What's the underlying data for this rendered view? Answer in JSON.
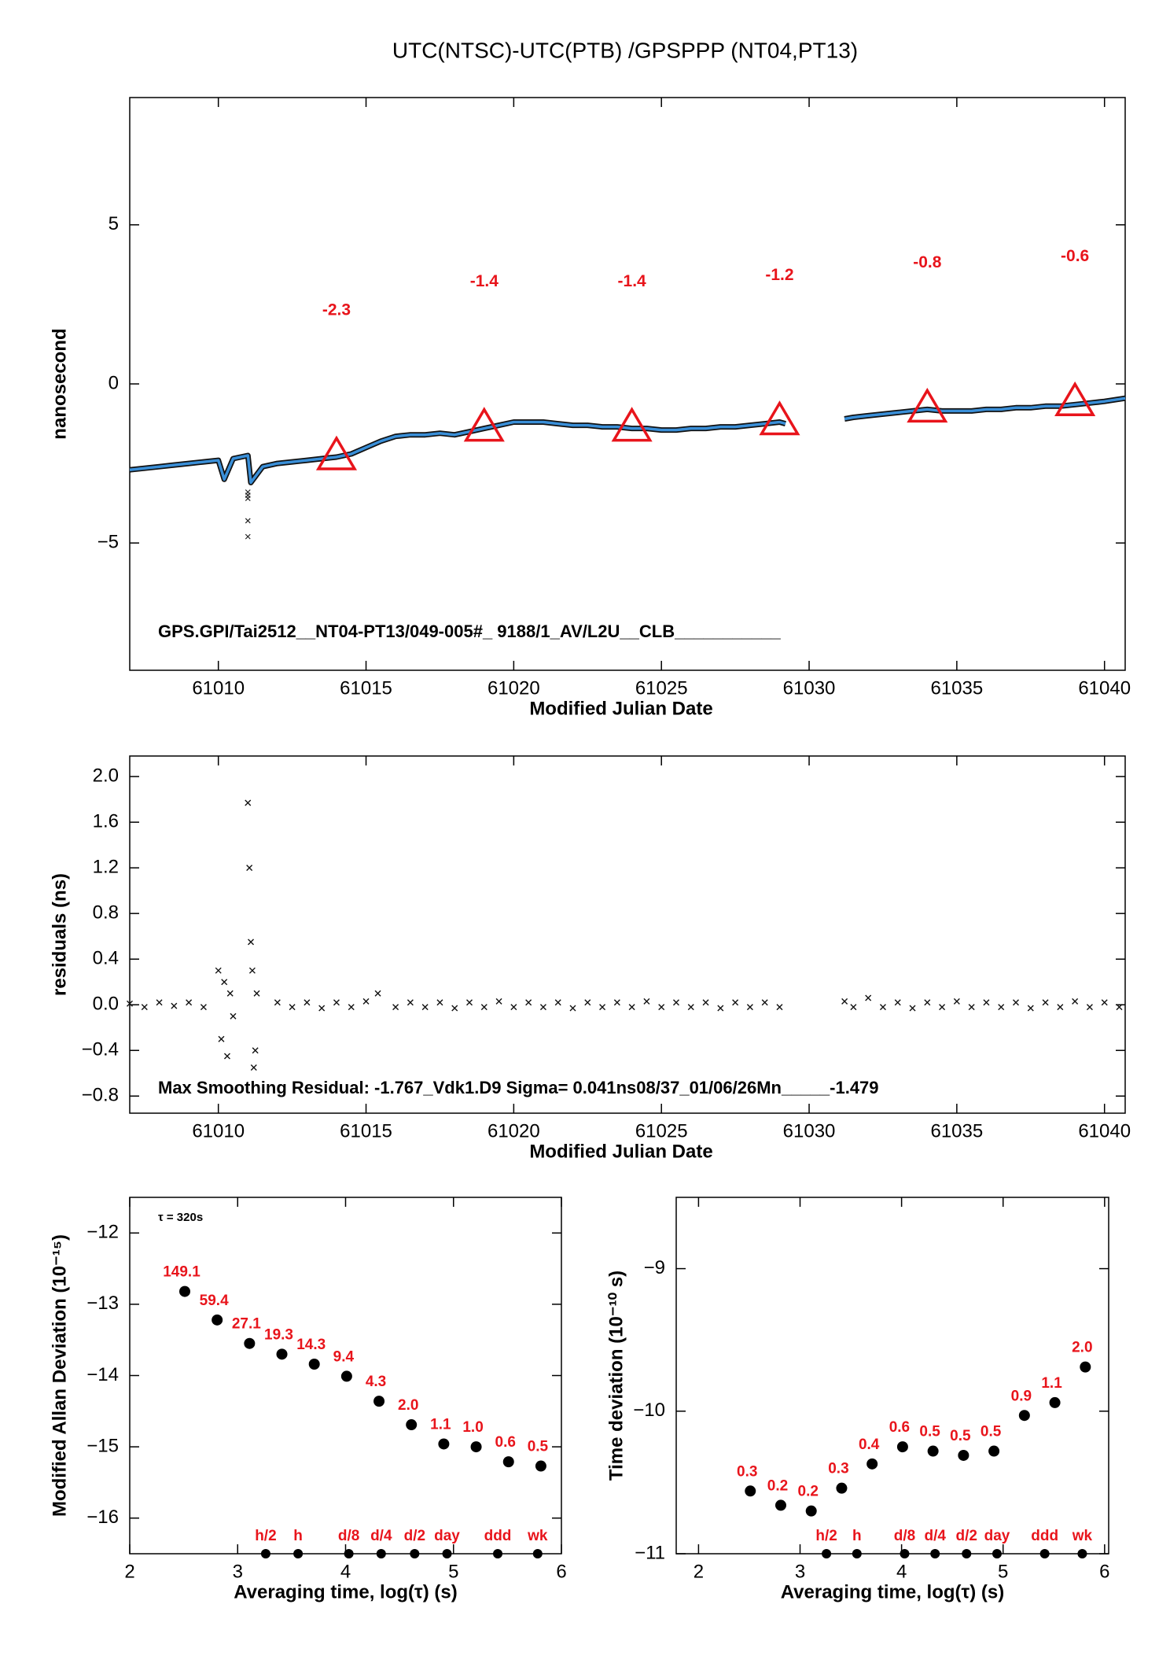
{
  "chart_data": [
    {
      "type": "line",
      "title": "UTC(NTSC)-UTC(PTB)  /GPSPPP  (NT04,PT13)",
      "xlabel": "Modified Julian Date",
      "ylabel": "nanosecond",
      "xlim": [
        61007,
        61040.7
      ],
      "ylim": [
        -9,
        9
      ],
      "xticks": [
        61010,
        61015,
        61020,
        61025,
        61030,
        61035,
        61040
      ],
      "yticks": [
        {
          "value": -5,
          "label": "−5"
        },
        0,
        5
      ],
      "color": "#3a8fd8",
      "x": [
        61007,
        61007.5,
        61008,
        61008.5,
        61009,
        61009.5,
        61010,
        61010.2,
        61010.5,
        61011,
        61011.1,
        61011.5,
        61012,
        61012.5,
        61013,
        61013.5,
        61014,
        61014.5,
        61015,
        61015.5,
        61016,
        61016.5,
        61017,
        61017.5,
        61018,
        61018.5,
        61019,
        61019.5,
        61020,
        61020.5,
        61021,
        61021.5,
        61022,
        61022.5,
        61023,
        61023.5,
        61024,
        61024.5,
        61025,
        61025.5,
        61026,
        61026.5,
        61027,
        61027.5,
        61028,
        61028.5,
        61029,
        61029.2,
        61030,
        61031.2,
        61031.5,
        61032,
        61032.5,
        61033,
        61033.5,
        61034,
        61034.5,
        61035,
        61035.5,
        61036,
        61036.5,
        61037,
        61037.5,
        61038,
        61038.5,
        61039,
        61039.5,
        61040,
        61040.7
      ],
      "values": [
        -2.7,
        -2.65,
        -2.6,
        -2.55,
        -2.5,
        -2.45,
        -2.4,
        -3.0,
        -2.35,
        -2.25,
        -3.1,
        -2.6,
        -2.5,
        -2.45,
        -2.4,
        -2.35,
        -2.3,
        -2.2,
        -2.0,
        -1.8,
        -1.65,
        -1.6,
        -1.6,
        -1.55,
        -1.6,
        -1.5,
        -1.4,
        -1.3,
        -1.2,
        -1.2,
        -1.2,
        -1.25,
        -1.3,
        -1.3,
        -1.35,
        -1.35,
        -1.4,
        -1.4,
        -1.45,
        -1.45,
        -1.4,
        -1.4,
        -1.35,
        -1.35,
        -1.3,
        -1.25,
        -1.2,
        -1.25,
        null,
        -1.1,
        -1.05,
        -1.0,
        -0.95,
        -0.9,
        -0.85,
        -0.8,
        -0.85,
        -0.85,
        -0.85,
        -0.8,
        -0.8,
        -0.75,
        -0.75,
        -0.7,
        -0.7,
        -0.65,
        -0.6,
        -0.55,
        -0.45
      ],
      "markers": {
        "color": "#e8141b",
        "x": [
          61014,
          61019,
          61024,
          61029,
          61034,
          61039
        ],
        "values": [
          -2.3,
          -1.4,
          -1.4,
          -1.2,
          -0.8,
          -0.6
        ],
        "value_labels": [
          "-2.3",
          "-1.4",
          "-1.4",
          "-1.2",
          "-0.8",
          "-0.6"
        ]
      },
      "outliers": {
        "x": [
          61011,
          61011,
          61011,
          61011,
          61011
        ],
        "values": [
          -3.4,
          -3.5,
          -3.6,
          -4.3,
          -4.8
        ]
      },
      "note": "GPS.GPI/Tai2512__NT04-PT13/049-005#_  9188/1_AV/L2U__CLB___________"
    },
    {
      "type": "scatter",
      "xlabel": "Modified Julian Date",
      "ylabel": "residuals (ns)",
      "xlim": [
        61007,
        61040.7
      ],
      "ylim": [
        -0.95,
        2.18
      ],
      "xticks": [
        61010,
        61015,
        61020,
        61025,
        61030,
        61035,
        61040
      ],
      "yticks": [
        {
          "value": -0.8,
          "label": "−0.8"
        },
        {
          "value": -0.4,
          "label": "−0.4"
        },
        {
          "value": 0,
          "label": "0.0"
        },
        0.4,
        0.8,
        1.2,
        1.6,
        {
          "value": 2,
          "label": "2.0"
        }
      ],
      "x": [
        61007,
        61007.5,
        61008,
        61008.5,
        61009,
        61009.5,
        61010,
        61010.1,
        61010.2,
        61010.3,
        61010.4,
        61010.5,
        61011,
        61011.05,
        61011.1,
        61011.15,
        61011.2,
        61011.25,
        61011.3,
        61012,
        61012.5,
        61013,
        61013.5,
        61014,
        61014.5,
        61015,
        61015.4,
        61016,
        61016.5,
        61017,
        61017.5,
        61018,
        61018.5,
        61019,
        61019.5,
        61020,
        61020.5,
        61021,
        61021.5,
        61022,
        61022.5,
        61023,
        61023.5,
        61024,
        61024.5,
        61025,
        61025.5,
        61026,
        61026.5,
        61027,
        61027.5,
        61028,
        61028.5,
        61029,
        61031.2,
        61031.5,
        61032,
        61032.5,
        61033,
        61033.5,
        61034,
        61034.5,
        61035,
        61035.5,
        61036,
        61036.5,
        61037,
        61037.5,
        61038,
        61038.5,
        61039,
        61039.5,
        61040,
        61040.5
      ],
      "values": [
        0.01,
        -0.02,
        0.02,
        -0.01,
        0.02,
        -0.02,
        0.3,
        -0.3,
        0.2,
        -0.45,
        0.1,
        -0.1,
        1.77,
        1.2,
        0.55,
        0.3,
        -0.55,
        -0.4,
        0.1,
        0.02,
        -0.02,
        0.02,
        -0.03,
        0.02,
        -0.02,
        0.03,
        0.1,
        -0.02,
        0.02,
        -0.02,
        0.02,
        -0.03,
        0.02,
        -0.02,
        0.03,
        -0.02,
        0.02,
        -0.02,
        0.02,
        -0.03,
        0.02,
        -0.02,
        0.02,
        -0.02,
        0.03,
        -0.02,
        0.02,
        -0.02,
        0.02,
        -0.03,
        0.02,
        -0.02,
        0.02,
        -0.02,
        0.03,
        -0.02,
        0.06,
        -0.02,
        0.02,
        -0.03,
        0.02,
        -0.02,
        0.03,
        -0.02,
        0.02,
        -0.02,
        0.02,
        -0.03,
        0.02,
        -0.02,
        0.03,
        -0.02,
        0.02,
        -0.02
      ],
      "note": "Max Smoothing Residual: -1.767_Vdk1.D9  Sigma= 0.041ns08/37_01/06/26Mn_____-1.479"
    },
    {
      "type": "scatter",
      "xlabel": "Averaging time, log(τ) (s)",
      "ylabel": "Modified Allan Deviation (10⁻¹⁵)",
      "xlim": [
        2,
        6
      ],
      "ylim": [
        -16.5,
        -11.5
      ],
      "xticks": [
        2,
        3,
        4,
        5,
        6
      ],
      "yticks": [
        {
          "value": -16,
          "label": "−16"
        },
        {
          "value": -15,
          "label": "−15"
        },
        {
          "value": -14,
          "label": "−14"
        },
        {
          "value": -13,
          "label": "−13"
        },
        {
          "value": -12,
          "label": "−12"
        }
      ],
      "annotation": "τ = 320s",
      "x": [
        2.51,
        2.81,
        3.11,
        3.41,
        3.71,
        4.01,
        4.31,
        4.61,
        4.91,
        5.21,
        5.51,
        5.81
      ],
      "values": [
        -12.82,
        -13.22,
        -13.55,
        -13.7,
        -13.84,
        -14.01,
        -14.36,
        -14.69,
        -14.96,
        -15.0,
        -15.21,
        -15.27
      ],
      "point_labels": [
        "149.1",
        "59.4",
        "27.1",
        "19.3",
        "14.3",
        "9.4",
        "4.3",
        "2.0",
        "1.1",
        "1.0",
        "0.6",
        "0.5"
      ],
      "periods": {
        "labels": [
          "h/2",
          "h",
          "d/8",
          "d/4",
          "d/2",
          "day",
          "ddd",
          "wk"
        ],
        "x": [
          3.26,
          3.56,
          4.03,
          4.33,
          4.64,
          4.94,
          5.41,
          5.78
        ]
      }
    },
    {
      "type": "scatter",
      "xlabel": "Averaging time, log(τ) (s)",
      "ylabel": "Time deviation (10⁻¹⁰ s)",
      "xlim": [
        1.78,
        6.04
      ],
      "ylim": [
        -11,
        -8.5
      ],
      "xticks": [
        2,
        3,
        4,
        5,
        6
      ],
      "yticks": [
        {
          "value": -11,
          "label": "−11"
        },
        {
          "value": -10,
          "label": "−10"
        },
        {
          "value": -9,
          "label": "−9"
        }
      ],
      "x": [
        2.51,
        2.81,
        3.11,
        3.41,
        3.71,
        4.01,
        4.31,
        4.61,
        4.91,
        5.21,
        5.51,
        5.81
      ],
      "values": [
        -10.56,
        -10.66,
        -10.7,
        -10.54,
        -10.37,
        -10.25,
        -10.28,
        -10.31,
        -10.28,
        -10.03,
        -9.94,
        -9.69
      ],
      "point_labels": [
        "0.3",
        "0.2",
        "0.2",
        "0.3",
        "0.4",
        "0.6",
        "0.5",
        "0.5",
        "0.5",
        "0.9",
        "1.1",
        "2.0"
      ],
      "periods": {
        "labels": [
          "h/2",
          "h",
          "d/8",
          "d/4",
          "d/2",
          "day",
          "ddd",
          "wk"
        ],
        "x": [
          3.26,
          3.56,
          4.03,
          4.33,
          4.64,
          4.94,
          5.41,
          5.78
        ]
      }
    }
  ]
}
